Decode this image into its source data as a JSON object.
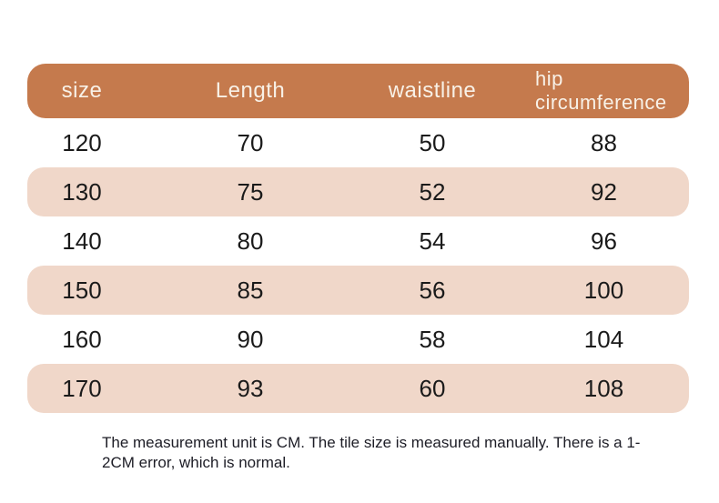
{
  "chart_data": {
    "type": "table",
    "columns": [
      "size",
      "Length",
      "waistline",
      "hip circumference"
    ],
    "rows": [
      [
        "120",
        "70",
        "50",
        "88"
      ],
      [
        "130",
        "75",
        "52",
        "92"
      ],
      [
        "140",
        "80",
        "54",
        "96"
      ],
      [
        "150",
        "85",
        "56",
        "100"
      ],
      [
        "160",
        "90",
        "58",
        "104"
      ],
      [
        "170",
        "93",
        "60",
        "108"
      ]
    ],
    "note": "The measurement unit is CM. The tile size is measured manually. There is a 1-2CM error, which is normal.",
    "layout_hints": {
      "striped_row_indices": [
        1,
        3,
        5
      ],
      "unit": "CM"
    }
  },
  "colors": {
    "page_bg": "#ffffff",
    "header_bg": "#c57a4d",
    "header_text": "#f8f1e7",
    "stripe_bg": "#f0d7c9",
    "cell_text": "#1a1a1a",
    "note_text": "#1d1d26"
  }
}
